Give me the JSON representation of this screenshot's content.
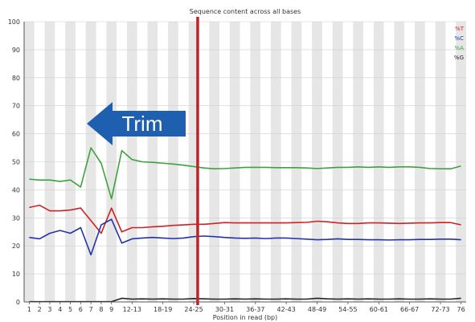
{
  "chart_data": {
    "type": "line",
    "title": "Sequence content across all bases",
    "xlabel": "Position in read (bp)",
    "ylabel": "",
    "ylim": [
      0,
      100
    ],
    "yticks": [
      0,
      10,
      20,
      30,
      40,
      50,
      60,
      70,
      80,
      90,
      100
    ],
    "grid": true,
    "legend_position": "top-right",
    "categories": [
      "1",
      "2",
      "3",
      "4",
      "5",
      "6",
      "7",
      "8",
      "9",
      "10-11",
      "12-13",
      "14-15",
      "16-17",
      "18-19",
      "20-21",
      "22-23",
      "24-25",
      "26-27",
      "28-29",
      "30-31",
      "32-33",
      "34-35",
      "36-37",
      "38-39",
      "40-41",
      "42-43",
      "44-45",
      "46-47",
      "48-49",
      "50-51",
      "52-53",
      "54-55",
      "56-57",
      "58-59",
      "60-61",
      "62-63",
      "64-65",
      "66-67",
      "68-69",
      "70-71",
      "72-73",
      "74-75",
      "76"
    ],
    "x_tick_labels": [
      "1",
      "2",
      "3",
      "4",
      "5",
      "6",
      "7",
      "8",
      "9",
      "12-13",
      "18-19",
      "24-25",
      "30-31",
      "36-37",
      "42-43",
      "48-49",
      "54-55",
      "60-61",
      "66-67",
      "72-73",
      "76"
    ],
    "series": [
      {
        "name": "%T",
        "color": "#cc2222",
        "values": [
          33.7,
          34.5,
          32.5,
          32.5,
          32.8,
          33.5,
          29.0,
          24.5,
          33.5,
          25.0,
          26.5,
          26.5,
          26.8,
          27.0,
          27.3,
          27.5,
          27.7,
          27.7,
          28.0,
          28.3,
          28.2,
          28.2,
          28.2,
          28.2,
          28.2,
          28.2,
          28.3,
          28.4,
          28.8,
          28.6,
          28.2,
          28.0,
          28.0,
          28.2,
          28.2,
          28.1,
          28.0,
          28.1,
          28.2,
          28.2,
          28.3,
          28.3,
          27.5
        ]
      },
      {
        "name": "%C",
        "color": "#2233aa",
        "values": [
          23.0,
          22.5,
          24.5,
          25.5,
          24.5,
          26.5,
          16.8,
          27.5,
          29.5,
          21.0,
          22.5,
          22.8,
          23.0,
          22.8,
          22.6,
          22.8,
          23.3,
          23.5,
          23.3,
          23.0,
          22.8,
          22.7,
          22.8,
          22.6,
          22.8,
          22.8,
          22.6,
          22.4,
          22.2,
          22.3,
          22.5,
          22.3,
          22.3,
          22.2,
          22.2,
          22.1,
          22.2,
          22.2,
          22.3,
          22.3,
          22.4,
          22.4,
          22.2
        ]
      },
      {
        "name": "%A",
        "color": "#3ca33c",
        "values": [
          43.8,
          43.5,
          43.5,
          43.0,
          43.5,
          41.0,
          55.0,
          49.5,
          36.8,
          54.0,
          50.8,
          50.0,
          49.8,
          49.5,
          49.2,
          48.8,
          48.3,
          47.8,
          47.5,
          47.6,
          47.8,
          48.0,
          48.0,
          48.0,
          47.9,
          47.9,
          47.9,
          47.8,
          47.6,
          47.8,
          48.0,
          48.0,
          48.2,
          48.0,
          48.2,
          48.0,
          48.2,
          48.2,
          48.0,
          47.6,
          47.5,
          47.5,
          48.5
        ]
      },
      {
        "name": "%G",
        "color": "#222222",
        "values": [
          0.1,
          0.1,
          0.1,
          0.1,
          0.1,
          0.1,
          0.1,
          0.1,
          0.1,
          1.3,
          1.0,
          1.1,
          1.0,
          1.1,
          1.0,
          1.0,
          1.2,
          1.1,
          1.0,
          1.0,
          1.1,
          1.0,
          1.1,
          1.0,
          1.0,
          1.1,
          1.0,
          1.0,
          1.3,
          1.1,
          1.0,
          1.1,
          1.0,
          1.1,
          1.0,
          1.0,
          1.1,
          1.0,
          1.0,
          1.1,
          1.0,
          1.0,
          1.3
        ]
      }
    ],
    "cutoff_marker": {
      "at_category": "24-25",
      "color": "#b8262b"
    },
    "annotation": {
      "text": "Trim",
      "color": "#1f5fb0"
    }
  }
}
